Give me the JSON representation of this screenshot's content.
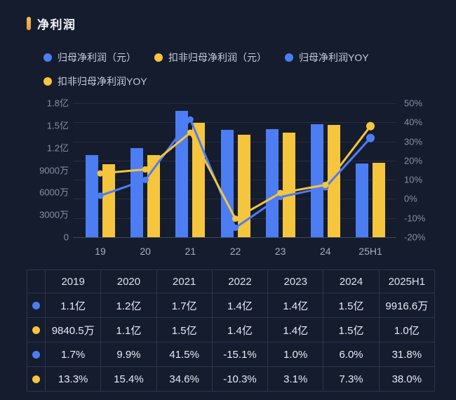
{
  "header": {
    "title": "净利润"
  },
  "legend": {
    "position": "top-left",
    "items": [
      {
        "label": "归母净利润（元）",
        "color_key": "blue"
      },
      {
        "label": "扣非归母净利润（元）",
        "color_key": "yellow"
      },
      {
        "label": "归母净利润YOY",
        "color_key": "blue"
      },
      {
        "label": "扣非归母净利润YOY",
        "color_key": "yellow"
      }
    ]
  },
  "chart_data": {
    "type": "bar+line (dual y-axis)",
    "categories": [
      "19",
      "20",
      "21",
      "22",
      "23",
      "24",
      "25H1"
    ],
    "series": [
      {
        "name": "归母净利润（元）",
        "type": "bar",
        "color_key": "blue",
        "unit": "万元",
        "values": [
          11000,
          12000,
          17000,
          14400,
          14500,
          15200,
          9916.6
        ],
        "labels": [
          "1.1亿",
          "1.2亿",
          "1.7亿",
          "1.4亿",
          "1.4亿",
          "1.5亿",
          "9916.6万"
        ]
      },
      {
        "name": "扣非归母净利润（元）",
        "type": "bar",
        "color_key": "yellow",
        "unit": "万元",
        "values": [
          9840.5,
          11000,
          15400,
          13800,
          14000,
          15100,
          10000
        ],
        "labels": [
          "9840.5万",
          "1.1亿",
          "1.5亿",
          "1.4亿",
          "1.4亿",
          "1.5亿",
          "1.0亿"
        ]
      },
      {
        "name": "归母净利润YOY",
        "type": "line",
        "color_key": "blue",
        "unit": "%",
        "values": [
          1.7,
          9.9,
          41.5,
          -15.1,
          1.0,
          6.0,
          31.8
        ]
      },
      {
        "name": "扣非归母净利润YOY",
        "type": "line",
        "color_key": "yellow",
        "unit": "%",
        "values": [
          13.3,
          15.4,
          34.6,
          -10.3,
          3.1,
          7.3,
          38.0
        ]
      }
    ],
    "left_axis": {
      "ticks": [
        "1.8亿",
        "1.5亿",
        "1.2亿",
        "9000万",
        "6000万",
        "3000万",
        "0"
      ],
      "max_wan": 18000,
      "min_wan": 0
    },
    "right_axis": {
      "ticks": [
        "50%",
        "40%",
        "30%",
        "20%",
        "10%",
        "0%",
        "-10%",
        "-20%"
      ],
      "max_pct": 50,
      "min_pct": -20
    },
    "grid": "horizontal-on"
  },
  "table": {
    "headers": [
      "",
      "2019",
      "2020",
      "2021",
      "2022",
      "2023",
      "2024",
      "2025H1"
    ],
    "rows": [
      {
        "dot": "blue",
        "cells": [
          "1.1亿",
          "1.2亿",
          "1.7亿",
          "1.4亿",
          "1.4亿",
          "1.5亿",
          "9916.6万"
        ]
      },
      {
        "dot": "yellow",
        "cells": [
          "9840.5万",
          "1.1亿",
          "1.5亿",
          "1.4亿",
          "1.4亿",
          "1.5亿",
          "1.0亿"
        ]
      },
      {
        "dot": "blue",
        "cells": [
          "1.7%",
          "9.9%",
          "41.5%",
          "-15.1%",
          "1.0%",
          "6.0%",
          "31.8%"
        ]
      },
      {
        "dot": "yellow",
        "cells": [
          "13.3%",
          "15.4%",
          "34.6%",
          "-10.3%",
          "3.1%",
          "7.3%",
          "38.0%"
        ]
      }
    ]
  },
  "colors": {
    "blue": "#4d7df2",
    "yellow": "#f5c53d",
    "background": "#151c2e",
    "title_marker": "#e9ad4a",
    "axis_text": "#878fa5",
    "x_label_text": "#a6aec0",
    "legend_text": "#c7cddb",
    "table_border": "#2b3550",
    "table_text": "#e7ebf3"
  }
}
